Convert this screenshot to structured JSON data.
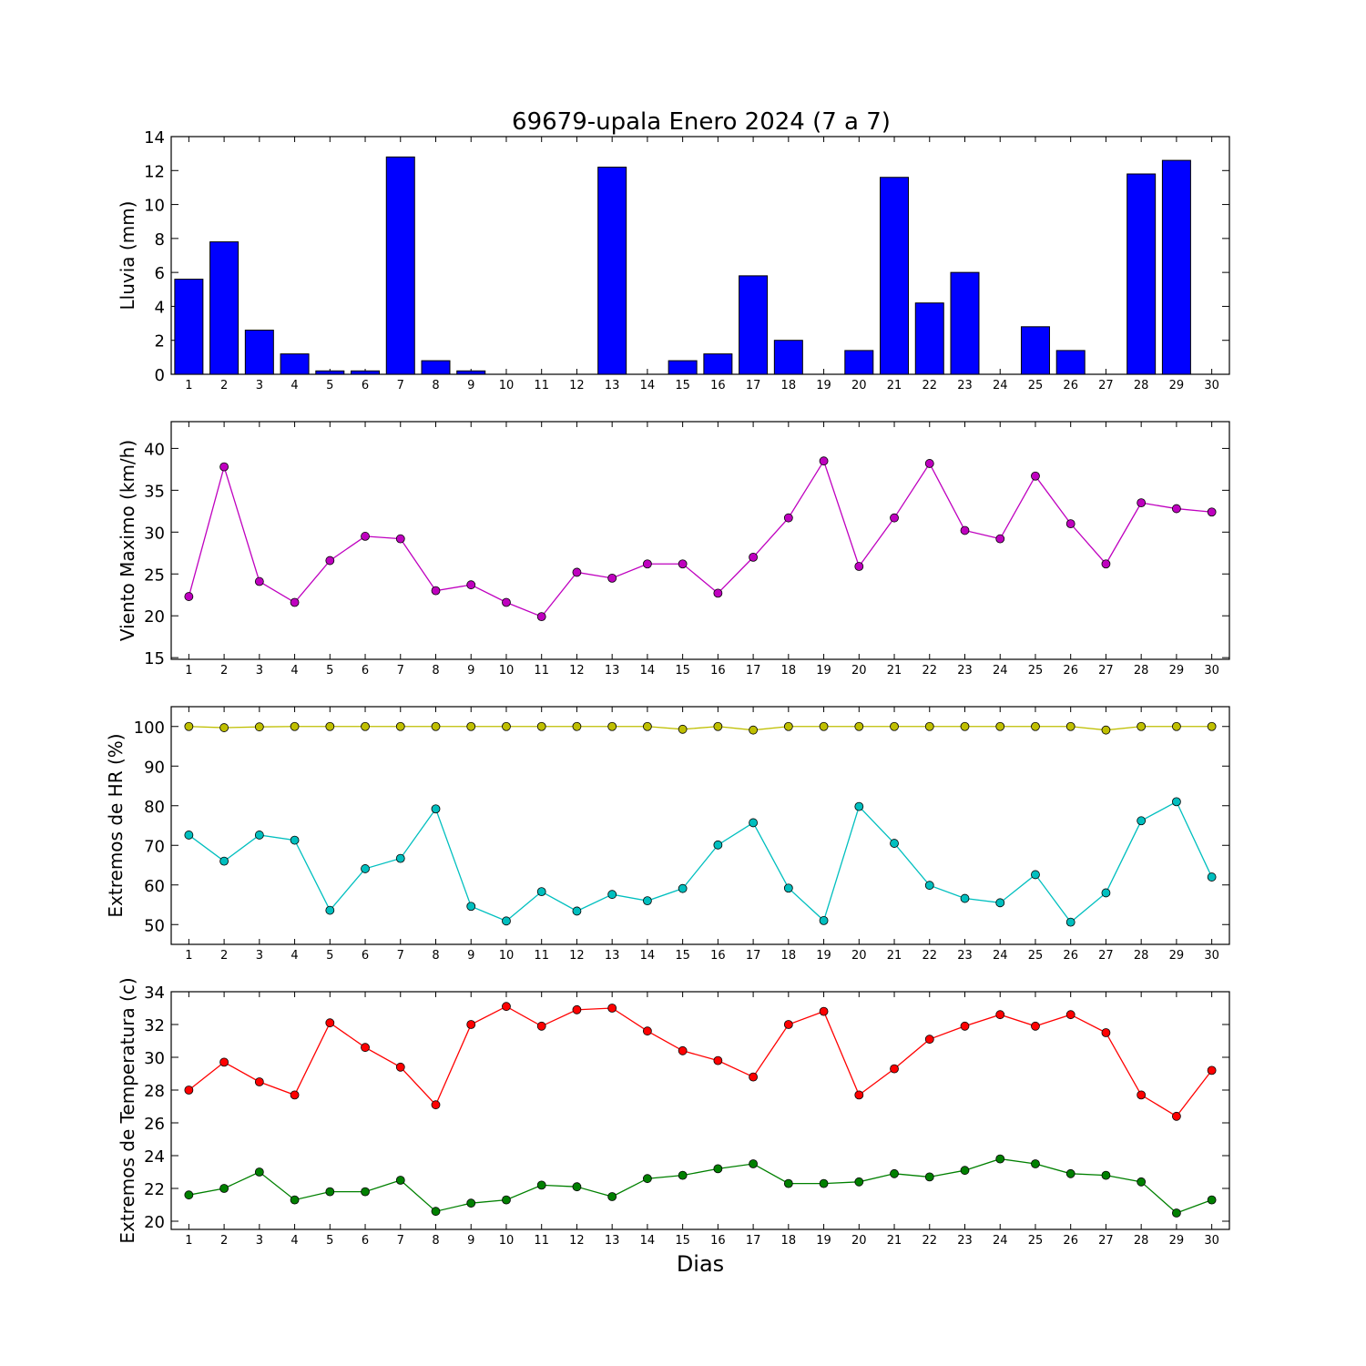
{
  "chart_data": {
    "title": "69679-upala Enero 2024  (7 a 7)",
    "xlabel": "Dias",
    "days": [
      1,
      2,
      3,
      4,
      5,
      6,
      7,
      8,
      9,
      10,
      11,
      12,
      13,
      14,
      15,
      16,
      17,
      18,
      19,
      20,
      21,
      22,
      23,
      24,
      25,
      26,
      27,
      28,
      29,
      30
    ],
    "panels": [
      {
        "type": "bar",
        "ylabel": "Lluvia (mm)",
        "ylim": [
          0,
          14
        ],
        "yticks": [
          0,
          2,
          4,
          6,
          8,
          10,
          12,
          14
        ],
        "series": [
          {
            "color": "#0000ff",
            "values": [
              5.6,
              7.8,
              2.6,
              1.2,
              0.2,
              0.2,
              12.8,
              0.8,
              0.2,
              0,
              0,
              0,
              12.2,
              0,
              0.8,
              1.2,
              5.8,
              2.0,
              0,
              1.4,
              11.6,
              4.2,
              6.0,
              0,
              2.8,
              1.4,
              0,
              11.8,
              12.6,
              0
            ]
          }
        ]
      },
      {
        "type": "line",
        "ylabel": "Viento Maximo (km/h)",
        "ylim": [
          14.8,
          43.2
        ],
        "yticks": [
          15,
          20,
          25,
          30,
          35,
          40
        ],
        "series": [
          {
            "color": "#bf00bf",
            "values": [
              22.3,
              37.8,
              24.1,
              21.6,
              26.6,
              29.5,
              29.2,
              23.0,
              23.7,
              21.6,
              19.9,
              25.2,
              24.5,
              26.2,
              26.2,
              22.7,
              27.0,
              31.7,
              38.5,
              25.9,
              31.7,
              38.2,
              30.2,
              29.2,
              36.7,
              31.0,
              26.2,
              33.5,
              32.8,
              32.4
            ]
          }
        ]
      },
      {
        "type": "line",
        "ylabel": "Extremos de HR (%)",
        "ylim": [
          45,
          105
        ],
        "yticks": [
          50,
          60,
          70,
          80,
          90,
          100
        ],
        "series": [
          {
            "color": "#bfbf00",
            "values": [
              100,
              99.7,
              99.9,
              100,
              100,
              100,
              100,
              100,
              100,
              100,
              100,
              100,
              100,
              100,
              99.3,
              100,
              99.1,
              100,
              100,
              100,
              100,
              100,
              100,
              100,
              100,
              100,
              99.1,
              100,
              100,
              100
            ]
          },
          {
            "color": "#00bfbf",
            "values": [
              72.6,
              66.0,
              72.6,
              71.3,
              53.6,
              64.1,
              66.7,
              79.2,
              54.6,
              50.9,
              58.3,
              53.4,
              57.6,
              56.0,
              59.1,
              70.1,
              75.7,
              59.2,
              51.0,
              79.8,
              70.5,
              59.9,
              56.6,
              55.5,
              62.6,
              50.6,
              58.0,
              76.2,
              81.0,
              62.0
            ]
          }
        ]
      },
      {
        "type": "line",
        "ylabel": "Extremos de Temperatura (c)",
        "ylim": [
          19.5,
          34
        ],
        "yticks": [
          20,
          22,
          24,
          26,
          28,
          30,
          32,
          34
        ],
        "series": [
          {
            "color": "#ff0000",
            "values": [
              28.0,
              29.7,
              28.5,
              27.7,
              32.1,
              30.6,
              29.4,
              27.1,
              32.0,
              33.1,
              31.9,
              32.9,
              33.0,
              31.6,
              30.4,
              29.8,
              28.8,
              32.0,
              32.8,
              27.7,
              29.3,
              31.1,
              31.9,
              32.6,
              31.9,
              32.6,
              31.5,
              27.7,
              26.4,
              29.2
            ]
          },
          {
            "color": "#008000",
            "values": [
              21.6,
              22.0,
              23.0,
              21.3,
              21.8,
              21.8,
              22.5,
              20.6,
              21.1,
              21.3,
              22.2,
              22.1,
              21.5,
              22.6,
              22.8,
              23.2,
              23.5,
              22.3,
              22.3,
              22.4,
              22.9,
              22.7,
              23.1,
              23.8,
              23.5,
              22.9,
              22.8,
              22.4,
              20.5,
              21.3
            ]
          }
        ]
      }
    ]
  }
}
